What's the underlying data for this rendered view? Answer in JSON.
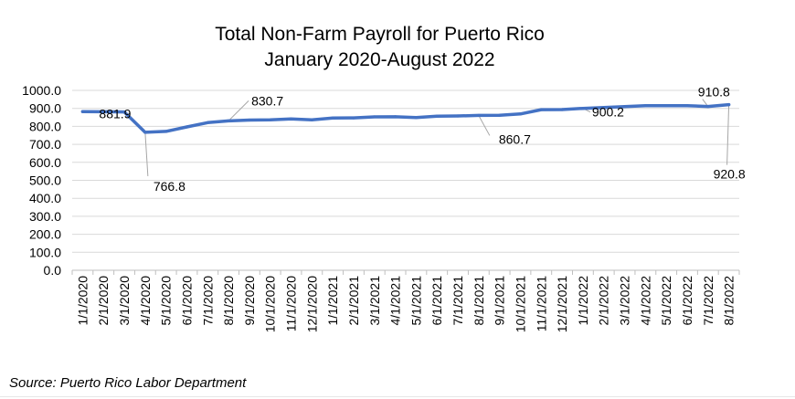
{
  "chart_data": {
    "type": "line",
    "title": "Total Non-Farm Payroll for Puerto Rico",
    "subtitle": "January 2020-August 2022",
    "xlabel": "",
    "ylabel": "",
    "ylim": [
      0,
      1000
    ],
    "yticks": [
      "0.0",
      "100.0",
      "200.0",
      "300.0",
      "400.0",
      "500.0",
      "600.0",
      "700.0",
      "800.0",
      "900.0",
      "1000.0"
    ],
    "grid": true,
    "legend": "none",
    "categories": [
      "1/1/2020",
      "2/1/2020",
      "3/1/2020",
      "4/1/2020",
      "5/1/2020",
      "6/1/2020",
      "7/1/2020",
      "8/1/2020",
      "9/1/2020",
      "10/1/2020",
      "11/1/2020",
      "12/1/2020",
      "1/1/2021",
      "2/1/2021",
      "3/1/2021",
      "4/1/2021",
      "5/1/2021",
      "6/1/2021",
      "7/1/2021",
      "8/1/2021",
      "9/1/2021",
      "10/1/2021",
      "11/1/2021",
      "12/1/2021",
      "1/1/2022",
      "2/1/2022",
      "3/1/2022",
      "4/1/2022",
      "5/1/2022",
      "6/1/2022",
      "7/1/2022",
      "8/1/2022"
    ],
    "series": [
      {
        "color": "#4472C4",
        "values": [
          881.9,
          881.0,
          880.0,
          766.8,
          772.0,
          797.0,
          820.7,
          830.7,
          835.0,
          836.0,
          841.0,
          836.5,
          846.0,
          847.0,
          853.0,
          853.5,
          849.0,
          857.0,
          858.0,
          860.7,
          862.0,
          869.0,
          893.0,
          893.5,
          900.2,
          905.0,
          910.0,
          915.0,
          915.0,
          915.0,
          910.8,
          920.8
        ]
      }
    ],
    "data_labels": [
      {
        "index": 0,
        "text": "881.9"
      },
      {
        "index": 3,
        "text": "766.8"
      },
      {
        "index": 7,
        "text": "830.7"
      },
      {
        "index": 19,
        "text": "860.7"
      },
      {
        "index": 24,
        "text": "900.2"
      },
      {
        "index": 30,
        "text": "910.8"
      },
      {
        "index": 31,
        "text": "920.8"
      }
    ]
  },
  "source": "Source: Puerto Rico Labor Department"
}
